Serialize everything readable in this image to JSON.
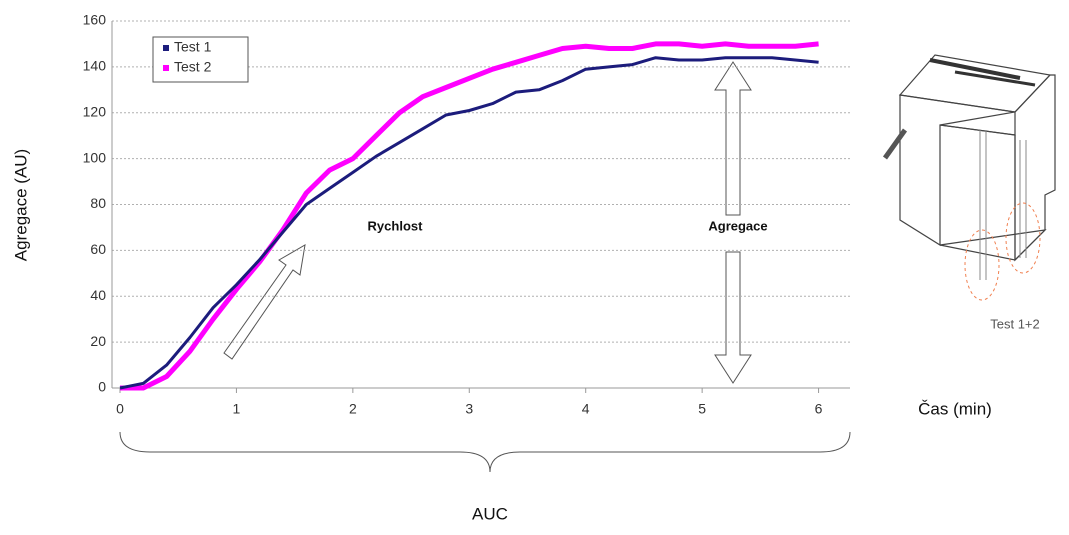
{
  "chart_data": {
    "type": "line",
    "ylabel": "Agregace (AU)",
    "xlabel": "Čas (min)",
    "x": [
      0,
      0.2,
      0.4,
      0.6,
      0.8,
      1.0,
      1.2,
      1.4,
      1.6,
      1.8,
      2.0,
      2.2,
      2.4,
      2.6,
      2.8,
      3.0,
      3.2,
      3.4,
      3.6,
      3.8,
      4.0,
      4.2,
      4.4,
      4.6,
      4.8,
      5.0,
      5.2,
      5.4,
      5.6,
      5.8,
      6.0
    ],
    "series": [
      {
        "name": "Test 1",
        "color": "#1c1c7c",
        "values": [
          0,
          2,
          10,
          22,
          35,
          45,
          56,
          68,
          80,
          87,
          94,
          101,
          107,
          113,
          119,
          121,
          124,
          129,
          130,
          134,
          139,
          140,
          141,
          144,
          143,
          143,
          144,
          144,
          144,
          143,
          142
        ]
      },
      {
        "name": "Test 2",
        "color": "#ff00ff",
        "values": [
          0,
          0,
          5,
          16,
          30,
          43,
          55,
          69,
          85,
          95,
          100,
          110,
          120,
          127,
          131,
          135,
          139,
          142,
          145,
          148,
          149,
          148,
          148,
          150,
          150,
          149,
          150,
          149,
          149,
          149,
          150
        ]
      }
    ],
    "xlim": [
      0,
      6.27
    ],
    "xticks": [
      0,
      1,
      2,
      3,
      4,
      5,
      6
    ],
    "ylim": [
      0,
      160
    ],
    "yticks": [
      0,
      20,
      40,
      60,
      80,
      100,
      120,
      140,
      160
    ],
    "grid": true,
    "legend": "upper left",
    "annotations": [
      "Rychlost",
      "Agregace",
      "AUC",
      "Test 1+2"
    ]
  }
}
